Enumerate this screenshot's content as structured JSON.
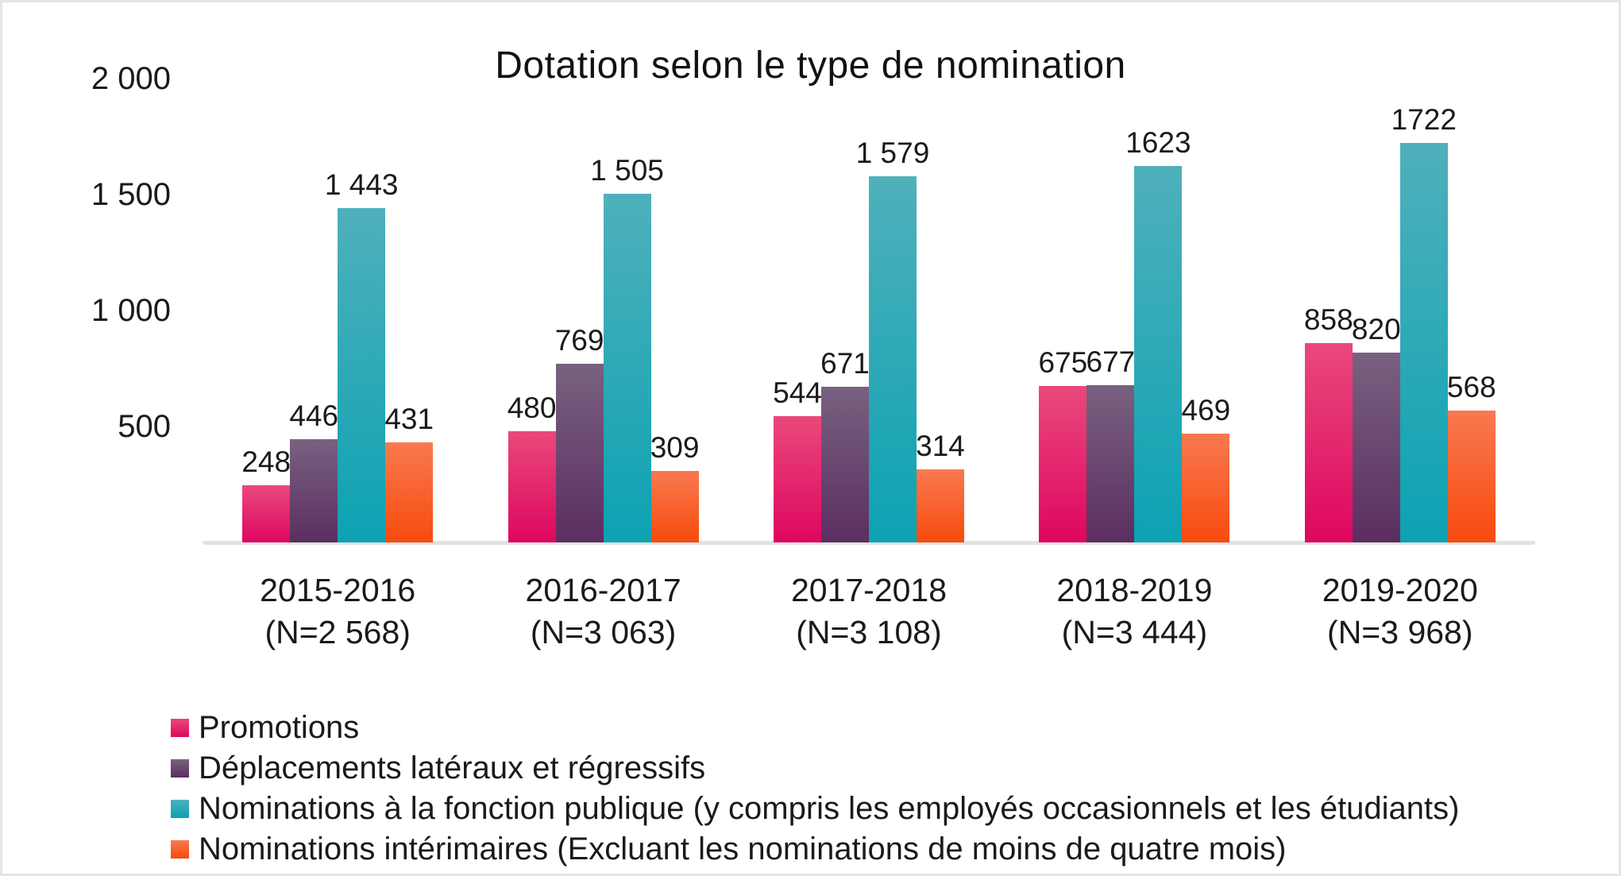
{
  "title": "Dotation selon le type de nomination",
  "chart_data": {
    "type": "bar",
    "title": "Dotation selon le type de nomination",
    "categories": [
      "2015-2016",
      "2016-2017",
      "2017-2018",
      "2018-2019",
      "2019-2020"
    ],
    "category_sublabels": [
      "(N=2 568)",
      "(N=3 063)",
      "(N=3 108)",
      "(N=3 444)",
      "(N=3 968)"
    ],
    "series": [
      {
        "name": "Promotions",
        "values": [
          248,
          480,
          544,
          675,
          858
        ],
        "value_labels": [
          "248",
          "480",
          "544",
          "675",
          "858"
        ],
        "color_top": "#E9497B",
        "color_bottom": "#DE0660"
      },
      {
        "name": "Déplacements latéraux et régressifs",
        "values": [
          446,
          769,
          671,
          677,
          820
        ],
        "value_labels": [
          "446",
          "769",
          "671",
          "677",
          "820"
        ],
        "color_top": "#796180",
        "color_bottom": "#5B2E60"
      },
      {
        "name": "Nominations à la fonction publique (y compris les employés occasionnels et les étudiants)",
        "values": [
          1443,
          1505,
          1579,
          1623,
          1722
        ],
        "value_labels": [
          "1 443",
          "1 505",
          "1 579",
          "1623",
          "1722"
        ],
        "color_top": "#4FB0BB",
        "color_bottom": "#0CA2B3"
      },
      {
        "name": "Nominations intérimaires (Excluant les nominations de moins de quatre mois)",
        "values": [
          431,
          309,
          314,
          469,
          568
        ],
        "value_labels": [
          "431",
          "309",
          "314",
          "469",
          "568"
        ],
        "color_top": "#F97950",
        "color_bottom": "#F74B0D"
      }
    ],
    "ylim": [
      0,
      2000
    ],
    "yticks": [
      {
        "value": 500,
        "label": "500"
      },
      {
        "value": 1000,
        "label": "1 000"
      },
      {
        "value": 1500,
        "label": "1 500"
      },
      {
        "value": 2000,
        "label": "2 000"
      }
    ],
    "grid": false,
    "legend_position": "bottom-left"
  }
}
